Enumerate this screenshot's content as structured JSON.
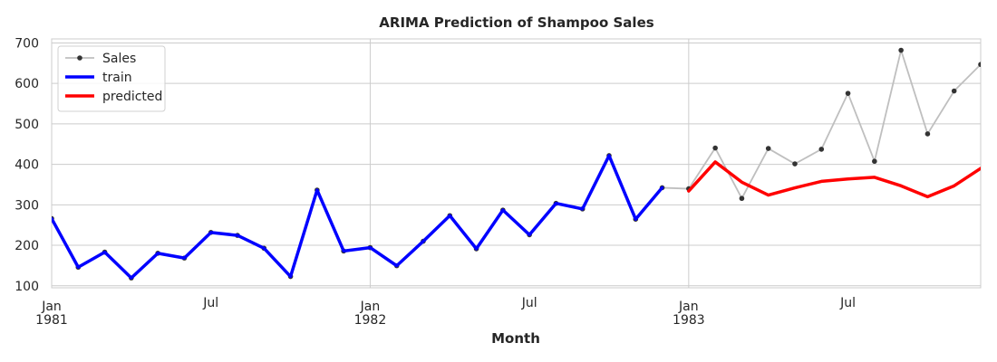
{
  "chart_data": {
    "type": "line",
    "title": "ARIMA Prediction of Shampoo Sales",
    "xlabel": "Month",
    "ylabel": "",
    "ylim": [
      95,
      710
    ],
    "yticks": [
      100,
      200,
      300,
      400,
      500,
      600,
      700
    ],
    "x_range": [
      "1981-01",
      "1984-01"
    ],
    "grid": true,
    "legend_position": "top-left",
    "xticks": [
      {
        "date": "1981-01",
        "line1": "Jan",
        "line2": "1981"
      },
      {
        "date": "1981-07",
        "line1": "Jul",
        "line2": ""
      },
      {
        "date": "1982-01",
        "line1": "Jan",
        "line2": "1982"
      },
      {
        "date": "1982-07",
        "line1": "Jul",
        "line2": ""
      },
      {
        "date": "1983-01",
        "line1": "Jan",
        "line2": "1983"
      },
      {
        "date": "1983-07",
        "line1": "Jul",
        "line2": ""
      }
    ],
    "series": [
      {
        "name": "Sales",
        "color": "#bfbfbf",
        "marker_color": "#333333",
        "x": [
          "1981-01",
          "1981-02",
          "1981-03",
          "1981-04",
          "1981-05",
          "1981-06",
          "1981-07",
          "1981-08",
          "1981-09",
          "1981-10",
          "1981-11",
          "1981-12",
          "1982-01",
          "1982-02",
          "1982-03",
          "1982-04",
          "1982-05",
          "1982-06",
          "1982-07",
          "1982-08",
          "1982-09",
          "1982-10",
          "1982-11",
          "1982-12",
          "1983-01",
          "1983-02",
          "1983-03",
          "1983-04",
          "1983-05",
          "1983-06",
          "1983-07",
          "1983-08",
          "1983-09",
          "1983-10",
          "1983-11",
          "1983-12"
        ],
        "values": [
          266.0,
          145.9,
          183.1,
          119.3,
          180.3,
          168.5,
          231.8,
          224.5,
          192.8,
          122.9,
          336.5,
          185.9,
          194.3,
          149.5,
          210.1,
          273.3,
          191.4,
          287.0,
          226.0,
          303.6,
          289.9,
          421.6,
          264.5,
          342.3,
          339.7,
          440.4,
          315.9,
          439.3,
          401.3,
          437.4,
          575.5,
          407.6,
          682.0,
          475.3,
          581.3,
          646.9
        ]
      },
      {
        "name": "train",
        "color": "#0000ff",
        "x": [
          "1981-01",
          "1981-02",
          "1981-03",
          "1981-04",
          "1981-05",
          "1981-06",
          "1981-07",
          "1981-08",
          "1981-09",
          "1981-10",
          "1981-11",
          "1981-12",
          "1982-01",
          "1982-02",
          "1982-03",
          "1982-04",
          "1982-05",
          "1982-06",
          "1982-07",
          "1982-08",
          "1982-09",
          "1982-10",
          "1982-11",
          "1982-12"
        ],
        "values": [
          266.0,
          145.9,
          183.1,
          119.3,
          180.3,
          168.5,
          231.8,
          224.5,
          192.8,
          122.9,
          336.5,
          185.9,
          194.3,
          149.5,
          210.1,
          273.3,
          191.4,
          287.0,
          226.0,
          303.6,
          289.9,
          421.6,
          264.5,
          342.3
        ]
      },
      {
        "name": "predicted",
        "color": "#ff0000",
        "x": [
          "1983-01",
          "1983-02",
          "1983-03",
          "1983-04",
          "1983-05",
          "1983-06",
          "1983-07",
          "1983-08",
          "1983-09",
          "1983-10",
          "1983-11",
          "1983-12"
        ],
        "values": [
          334,
          406,
          356,
          324,
          342,
          358,
          364,
          368,
          347,
          320,
          347,
          390
        ]
      }
    ]
  }
}
